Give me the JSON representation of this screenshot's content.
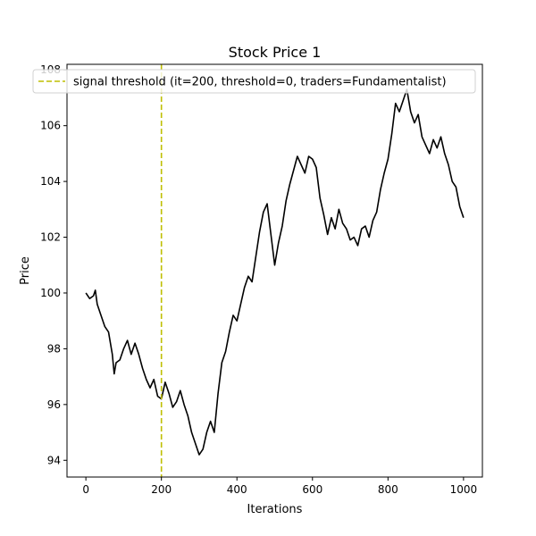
{
  "chart_data": {
    "type": "line",
    "title": "Stock Price 1",
    "xlabel": "Iterations",
    "ylabel": "Price",
    "xlim": [
      -50,
      1050
    ],
    "ylim": [
      93.4,
      108.2
    ],
    "xticks": [
      0,
      200,
      400,
      600,
      800,
      1000
    ],
    "yticks": [
      94,
      96,
      98,
      100,
      102,
      104,
      106,
      108
    ],
    "grid": false,
    "legend_position": "top",
    "colors": {
      "price": "#000000",
      "threshold": "#bfbf00"
    },
    "series": [
      {
        "key": "price",
        "x": [
          0,
          10,
          20,
          25,
          30,
          40,
          50,
          60,
          70,
          75,
          80,
          90,
          100,
          110,
          120,
          130,
          140,
          150,
          160,
          170,
          180,
          190,
          200,
          210,
          220,
          230,
          240,
          250,
          260,
          270,
          280,
          290,
          300,
          310,
          320,
          330,
          340,
          350,
          360,
          370,
          380,
          390,
          400,
          410,
          420,
          430,
          440,
          450,
          460,
          470,
          480,
          490,
          500,
          510,
          520,
          530,
          540,
          550,
          560,
          570,
          580,
          590,
          600,
          610,
          620,
          630,
          640,
          650,
          660,
          670,
          680,
          690,
          700,
          710,
          720,
          730,
          740,
          750,
          760,
          770,
          780,
          790,
          800,
          810,
          820,
          830,
          840,
          850,
          860,
          870,
          880,
          890,
          900,
          910,
          920,
          930,
          940,
          950,
          960,
          970,
          980,
          990,
          1000
        ],
        "y": [
          100.0,
          99.8,
          99.9,
          100.1,
          99.6,
          99.2,
          98.8,
          98.6,
          97.8,
          97.1,
          97.5,
          97.6,
          98.0,
          98.3,
          97.8,
          98.2,
          97.8,
          97.3,
          96.9,
          96.6,
          96.9,
          96.3,
          96.2,
          96.8,
          96.4,
          95.9,
          96.1,
          96.5,
          96.0,
          95.6,
          95.0,
          94.6,
          94.2,
          94.4,
          95.0,
          95.4,
          95.0,
          96.4,
          97.5,
          97.9,
          98.6,
          99.2,
          99.0,
          99.6,
          100.2,
          100.6,
          100.4,
          101.3,
          102.2,
          102.9,
          103.2,
          102.1,
          101.0,
          101.8,
          102.4,
          103.3,
          103.9,
          104.4,
          104.9,
          104.6,
          104.3,
          104.9,
          104.8,
          104.5,
          103.4,
          102.8,
          102.1,
          102.7,
          102.3,
          103.0,
          102.5,
          102.3,
          101.9,
          102.0,
          101.7,
          102.3,
          102.4,
          102.0,
          102.6,
          102.9,
          103.7,
          104.3,
          104.8,
          105.7,
          106.8,
          106.5,
          106.9,
          107.3,
          106.5,
          106.1,
          106.4,
          105.6,
          105.3,
          105.0,
          105.5,
          105.2,
          105.6,
          105.0,
          104.6,
          104.0,
          103.8,
          103.1,
          102.7
        ]
      }
    ],
    "vline": {
      "x": 200,
      "label": "signal threshold (it=200, threshold=0, traders=Fundamentalist)"
    }
  }
}
